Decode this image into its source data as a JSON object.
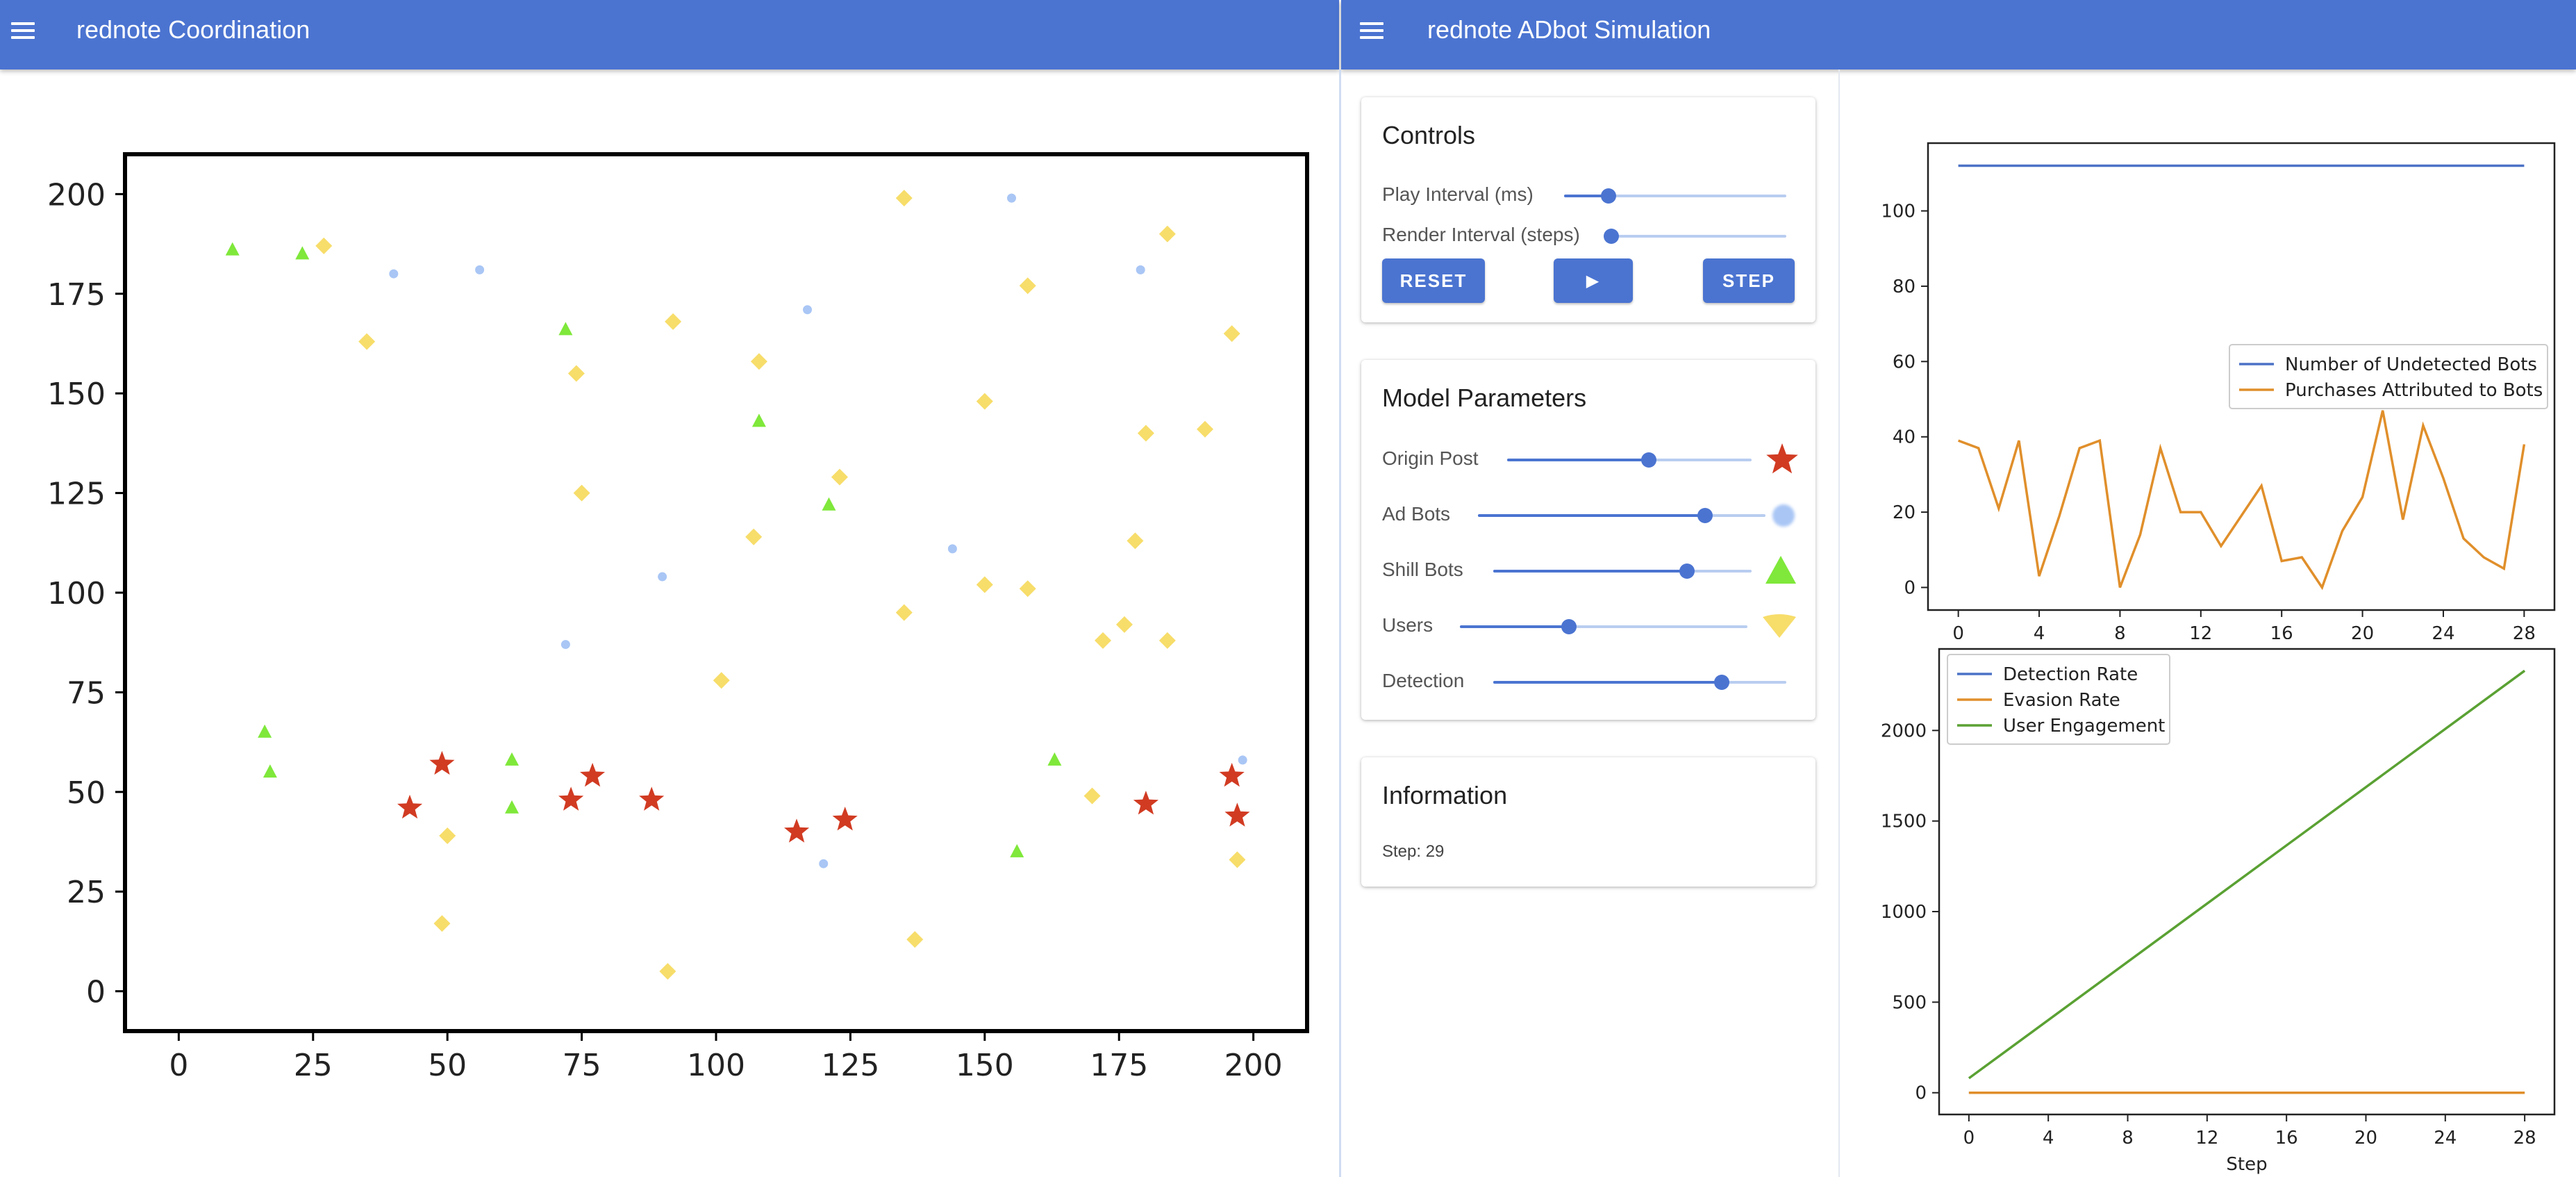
{
  "left_app": {
    "title": "rednote Coordination"
  },
  "right_app": {
    "title": "rednote ADbot Simulation"
  },
  "controls": {
    "title": "Controls",
    "play_interval_label": "Play Interval (ms)",
    "play_interval_value": 0.2,
    "render_interval_label": "Render Interval (steps)",
    "render_interval_value": 0.0,
    "reset_label": "RESET",
    "play_label": "▶",
    "step_label": "STEP"
  },
  "model_parameters": {
    "title": "Model Parameters",
    "params": [
      {
        "label": "Origin Post",
        "value": 0.58,
        "icon": "red-star-icon"
      },
      {
        "label": "Ad Bots",
        "value": 0.79,
        "icon": "blue-dot-icon"
      },
      {
        "label": "Shill Bots",
        "value": 0.75,
        "icon": "green-triangle-icon"
      },
      {
        "label": "Users",
        "value": 0.38,
        "icon": "yellow-diamond-icon"
      },
      {
        "label": "Detection",
        "value": 0.78
      }
    ]
  },
  "information": {
    "title": "Information",
    "step_text": "Step: 29"
  },
  "colors": {
    "accent": "#4b74d1",
    "origin_post": "#d13b22",
    "ad_bot": "#a9c6f5",
    "shill_bot": "#7fe83a",
    "user": "#f7dd6a",
    "series_blue": "#4c72c6",
    "series_orange": "#e08f2b",
    "series_green": "#5aa133"
  },
  "chart_data": [
    {
      "type": "scatter",
      "xlim": [
        -10,
        210
      ],
      "ylim": [
        -10,
        210
      ],
      "xticks": [
        "0",
        "25",
        "50",
        "75",
        "100",
        "125",
        "150",
        "175",
        "200"
      ],
      "yticks": [
        "0",
        "25",
        "50",
        "75",
        "100",
        "125",
        "150",
        "175",
        "200"
      ],
      "series": [
        {
          "points": [
            [
              43,
              46
            ],
            [
              49,
              57
            ],
            [
              73,
              48
            ],
            [
              77,
              54
            ],
            [
              88,
              48
            ],
            [
              115,
              40
            ],
            [
              124,
              43
            ],
            [
              180,
              47
            ],
            [
              196,
              54
            ],
            [
              197,
              44
            ]
          ]
        },
        {
          "points": [
            [
              40,
              180
            ],
            [
              56,
              181
            ],
            [
              117,
              171
            ],
            [
              155,
              199
            ],
            [
              179,
              181
            ],
            [
              90,
              104
            ],
            [
              144,
              111
            ],
            [
              72,
              87
            ],
            [
              120,
              32
            ],
            [
              198,
              58
            ]
          ]
        },
        {
          "points": [
            [
              10,
              186
            ],
            [
              23,
              185
            ],
            [
              72,
              166
            ],
            [
              108,
              143
            ],
            [
              121,
              122
            ],
            [
              16,
              65
            ],
            [
              17,
              55
            ],
            [
              62,
              58
            ],
            [
              62,
              46
            ],
            [
              163,
              58
            ],
            [
              156,
              35
            ]
          ]
        },
        {
          "points": [
            [
              27,
              187
            ],
            [
              35,
              163
            ],
            [
              92,
              168
            ],
            [
              74,
              155
            ],
            [
              108,
              158
            ],
            [
              75,
              125
            ],
            [
              123,
              129
            ],
            [
              107,
              114
            ],
            [
              135,
              199
            ],
            [
              158,
              177
            ],
            [
              184,
              190
            ],
            [
              196,
              165
            ],
            [
              150,
              148
            ],
            [
              180,
              140
            ],
            [
              191,
              141
            ],
            [
              178,
              113
            ],
            [
              150,
              102
            ],
            [
              158,
              101
            ],
            [
              135,
              95
            ],
            [
              172,
              88
            ],
            [
              176,
              92
            ],
            [
              184,
              88
            ],
            [
              101,
              78
            ],
            [
              170,
              49
            ],
            [
              50,
              39
            ],
            [
              49,
              17
            ],
            [
              91,
              5
            ],
            [
              137,
              13
            ],
            [
              197,
              33
            ]
          ]
        }
      ]
    },
    {
      "type": "line",
      "x": [
        0,
        1,
        2,
        3,
        4,
        5,
        6,
        7,
        8,
        9,
        10,
        11,
        12,
        13,
        14,
        15,
        16,
        17,
        18,
        19,
        20,
        21,
        22,
        23,
        24,
        25,
        26,
        27,
        28
      ],
      "xticks": [
        "0",
        "4",
        "8",
        "12",
        "16",
        "20",
        "24",
        "28"
      ],
      "yticks": [
        "0",
        "20",
        "40",
        "60",
        "80",
        "100"
      ],
      "xlim": [
        -1.5,
        29.5
      ],
      "ylim": [
        -6,
        118
      ],
      "series": [
        {
          "name": "Number of Undetected Bots",
          "values": [
            112,
            112,
            112,
            112,
            112,
            112,
            112,
            112,
            112,
            112,
            112,
            112,
            112,
            112,
            112,
            112,
            112,
            112,
            112,
            112,
            112,
            112,
            112,
            112,
            112,
            112,
            112,
            112,
            112
          ]
        },
        {
          "name": "Purchases Attributed to Bots",
          "values": [
            39,
            37,
            21,
            39,
            3,
            19,
            37,
            39,
            0,
            14,
            37,
            20,
            20,
            11,
            19,
            27,
            7,
            8,
            0,
            15,
            24,
            47,
            18,
            43,
            29,
            13,
            8,
            5,
            38
          ]
        }
      ]
    },
    {
      "type": "line",
      "x": [
        0,
        28
      ],
      "xticks": [
        "0",
        "4",
        "8",
        "12",
        "16",
        "20",
        "24",
        "28"
      ],
      "yticks": [
        "0",
        "500",
        "1000",
        "1500",
        "2000"
      ],
      "xlabel": "Step",
      "xlim": [
        -1.5,
        29.5
      ],
      "ylim": [
        -120,
        2450
      ],
      "series": [
        {
          "name": "Detection Rate",
          "values": [
            0,
            0
          ]
        },
        {
          "name": "Evasion Rate",
          "values": [
            0,
            0
          ]
        },
        {
          "name": "User Engagement",
          "values": [
            80,
            2330
          ]
        }
      ]
    }
  ]
}
